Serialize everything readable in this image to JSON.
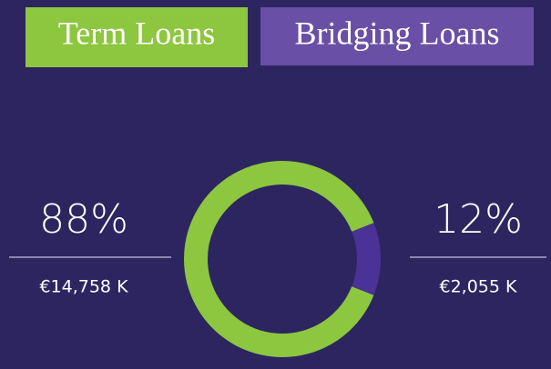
{
  "chart_data": {
    "type": "donut",
    "categories": [
      "Term Loans",
      "Bridging Loans"
    ],
    "values": [
      88,
      12
    ],
    "value_labels": [
      "88%",
      "12%"
    ],
    "amount_labels": [
      "€14,758 K",
      "€2,055 K"
    ],
    "colors": [
      "#8dc63f",
      "#4b3296"
    ],
    "tab_colors": [
      "#8dc63f",
      "#6a4fa6"
    ]
  }
}
